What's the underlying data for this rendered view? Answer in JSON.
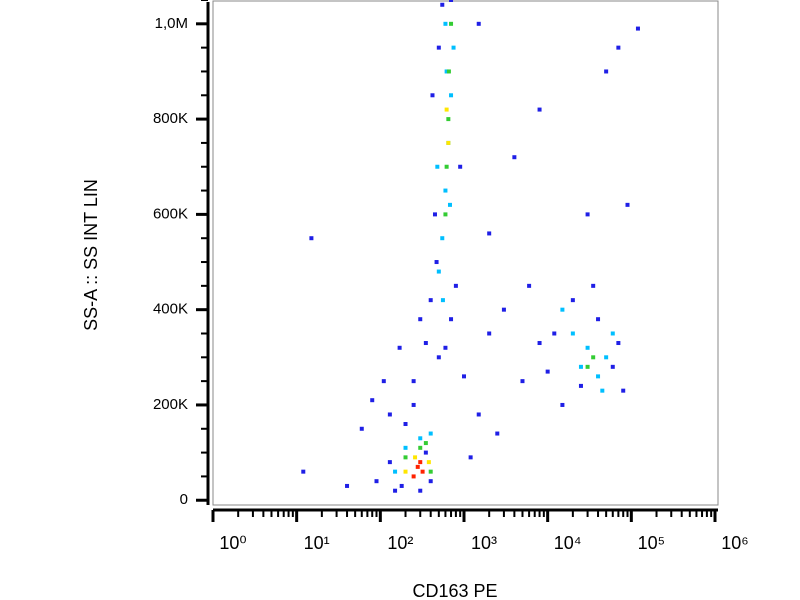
{
  "chart_data": {
    "type": "scatter",
    "x_label": "CD163 PE",
    "y_label": "SS-A :: SS INT LIN",
    "xscale": "log",
    "xlim": [
      1,
      1000000
    ],
    "xticks": [
      {
        "value": 1,
        "label": "10⁰"
      },
      {
        "value": 10,
        "label": "10¹"
      },
      {
        "value": 100,
        "label": "10²"
      },
      {
        "value": 1000,
        "label": "10³"
      },
      {
        "value": 10000,
        "label": "10⁴"
      },
      {
        "value": 100000,
        "label": "10⁵"
      },
      {
        "value": 1000000,
        "label": "10⁶"
      }
    ],
    "xminorticks": [
      2,
      3,
      4,
      5,
      6,
      7,
      8,
      9,
      20,
      30,
      40,
      50,
      60,
      70,
      80,
      90,
      200,
      300,
      400,
      500,
      600,
      700,
      800,
      900,
      2000,
      3000,
      4000,
      5000,
      6000,
      7000,
      8000,
      9000,
      20000,
      30000,
      40000,
      50000,
      60000,
      70000,
      80000,
      90000,
      200000,
      300000,
      400000,
      500000,
      600000,
      700000,
      800000,
      900000
    ],
    "ylim": [
      -10000,
      1050000
    ],
    "yticks": [
      0,
      {
        "value": 200000,
        "label": "200K"
      },
      {
        "value": 400000,
        "label": "400K"
      },
      {
        "value": 600000,
        "label": "600K"
      },
      {
        "value": 800000,
        "label": "800K"
      },
      {
        "value": 1000000,
        "label": "1,0M"
      }
    ],
    "yminorticks": [
      50000,
      100000,
      150000,
      250000,
      300000,
      350000,
      450000,
      500000,
      550000,
      650000,
      700000,
      750000,
      850000,
      900000,
      950000,
      1050000
    ],
    "series": [
      {
        "color": "#1f1fe6",
        "x": [
          12,
          15,
          40,
          60,
          80,
          90,
          110,
          130,
          150,
          170,
          200,
          250,
          300,
          350,
          400,
          500,
          450,
          420,
          900,
          1000,
          1500,
          2000,
          3000,
          2500,
          5000,
          6000,
          8000,
          15000,
          20000,
          60000,
          80000,
          50000,
          70000,
          90000,
          30000,
          4000,
          8000,
          1500,
          120000,
          600,
          550,
          700,
          350,
          400,
          180,
          250,
          500,
          470,
          800,
          12000,
          40000,
          70000,
          25000,
          35000,
          10000,
          700,
          1200,
          300,
          130,
          2000
        ],
        "y": [
          60000,
          550000,
          30000,
          150000,
          210000,
          40000,
          250000,
          180000,
          20000,
          320000,
          160000,
          200000,
          380000,
          330000,
          420000,
          300000,
          600000,
          850000,
          700000,
          260000,
          180000,
          350000,
          400000,
          140000,
          250000,
          450000,
          330000,
          200000,
          420000,
          280000,
          230000,
          900000,
          950000,
          620000,
          600000,
          720000,
          820000,
          1000000,
          990000,
          320000,
          1040000,
          1050000,
          100000,
          40000,
          30000,
          250000,
          950000,
          500000,
          450000,
          350000,
          380000,
          330000,
          240000,
          450000,
          270000,
          380000,
          90000,
          20000,
          80000,
          560000
        ]
      },
      {
        "color": "#00bfff",
        "x": [
          500,
          550,
          600,
          650,
          700,
          750,
          560,
          620,
          480,
          300,
          200,
          400,
          150,
          30000,
          40000,
          20000,
          50000,
          15000,
          25000,
          60000,
          45000,
          600,
          680
        ],
        "y": [
          480000,
          550000,
          650000,
          750000,
          850000,
          950000,
          420000,
          900000,
          700000,
          130000,
          110000,
          140000,
          60000,
          320000,
          260000,
          350000,
          300000,
          400000,
          280000,
          350000,
          230000,
          1000000,
          620000
        ]
      },
      {
        "color": "#33cc33",
        "x": [
          620,
          650,
          660,
          600,
          700,
          300,
          200,
          400,
          35000,
          30000,
          350
        ],
        "y": [
          700000,
          800000,
          900000,
          600000,
          1000000,
          110000,
          90000,
          60000,
          300000,
          280000,
          120000
        ]
      },
      {
        "color": "#ffe600",
        "x": [
          650,
          620,
          260,
          380,
          200
        ],
        "y": [
          750000,
          820000,
          90000,
          80000,
          60000
        ]
      },
      {
        "color": "#ff2200",
        "x": [
          280,
          320,
          250,
          300
        ],
        "y": [
          70000,
          60000,
          50000,
          80000
        ]
      }
    ]
  }
}
